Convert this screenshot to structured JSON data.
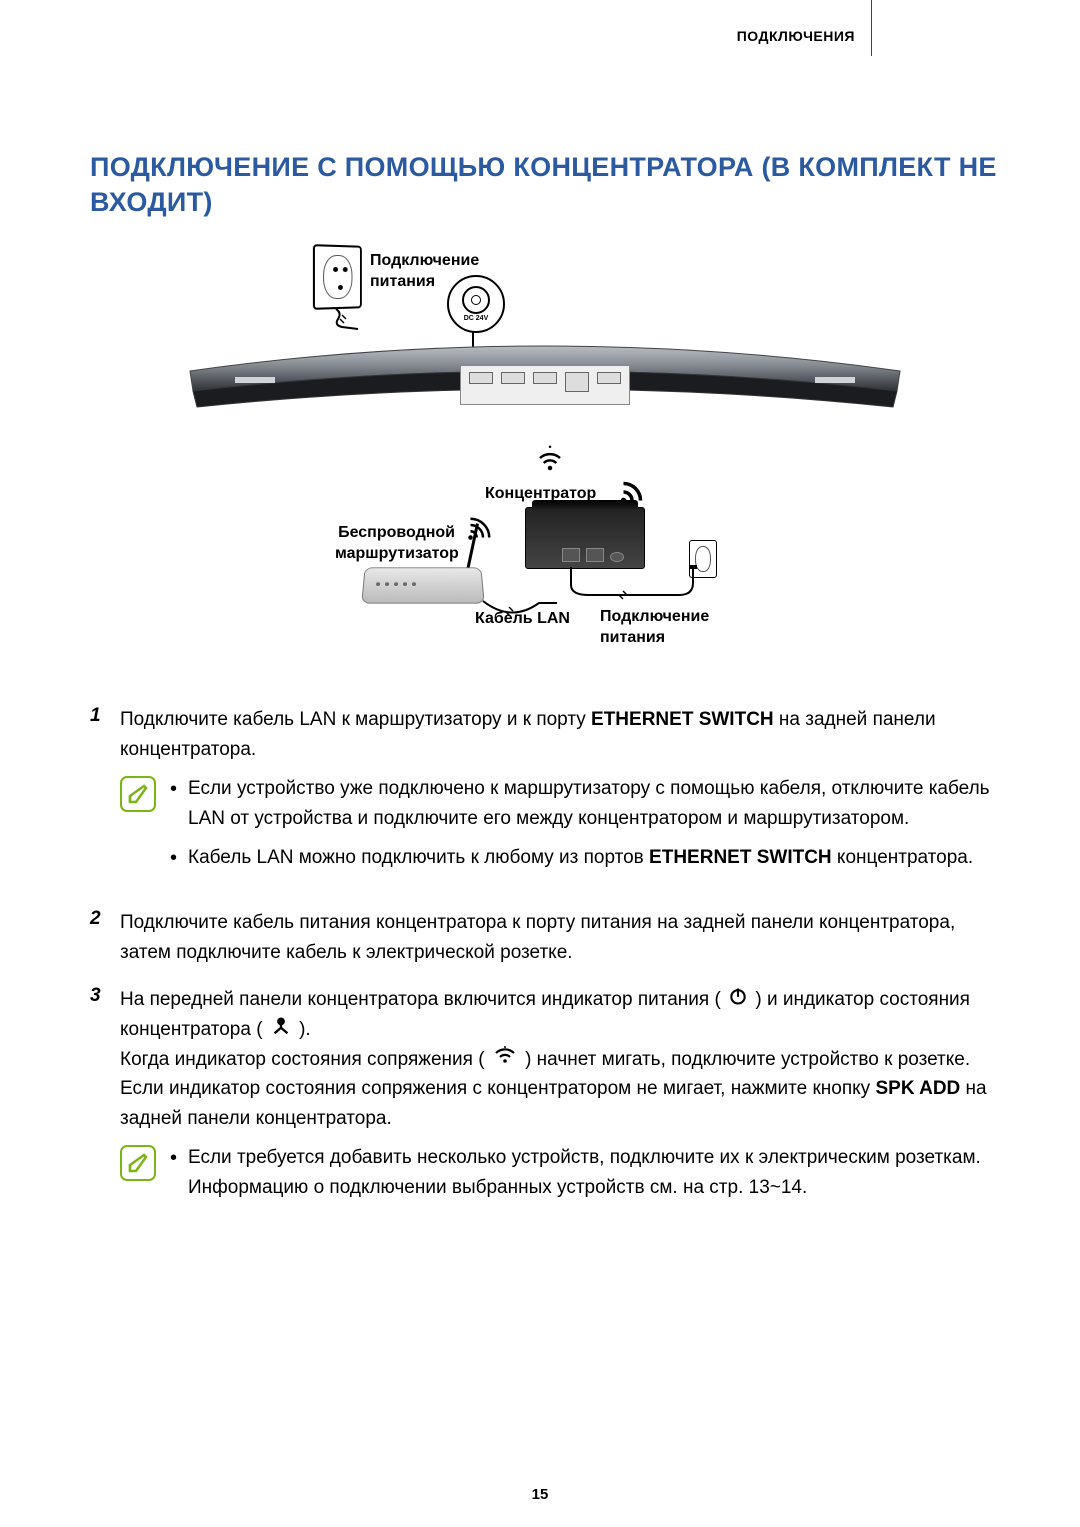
{
  "header": {
    "section": "ПОДКЛЮЧЕНИЯ"
  },
  "title": "ПОДКЛЮЧЕНИЕ С ПОМОЩЬЮ КОНЦЕНТРАТОРА (В КОМПЛЕКТ НЕ ВХОДИТ)",
  "diagram": {
    "power_label": "Подключение питания",
    "dc_label": "DC 24V",
    "hub_label": "Концентратор",
    "router_label": "Беспроводной маршрутизатор",
    "lan_label": "Кабель LAN",
    "power_label2": "Подключение питания",
    "colors": {
      "soundbar_top": "#9aa0a6",
      "soundbar_bot": "#3c3f44",
      "hub": "#222222",
      "router": "#cfcfcf",
      "note_border": "#7cb518",
      "title_color": "#2c5aa0"
    }
  },
  "steps": [
    {
      "num": "1",
      "text_pre": "Подключите кабель LAN к маршрутизатору и к порту ",
      "bold1": "ETHERNET SWITCH",
      "text_post": " на задней панели концентратора.",
      "notes": [
        "Если устройство уже подключено к маршрутизатору с помощью кабеля, отключите кабель LAN от устройства и подключите его между концентратором и маршрутизатором.",
        "Кабель LAN можно подключить к любому из портов <b>ETHERNET SWITCH</b> концентратора."
      ]
    },
    {
      "num": "2",
      "text": "Подключите кабель питания концентратора к порту питания на задней панели концентратора, затем подключите кабель к электрической розетке."
    },
    {
      "num": "3",
      "line1_pre": "На передней панели концентратора включится индикатор питания ( ",
      "line1_mid": " ) и индикатор состояния концентратора ( ",
      "line1_end": " ).",
      "line2_pre": "Когда индикатор состояния сопряжения ( ",
      "line2_end": " ) начнет мигать, подключите устройство к розетке.",
      "line3_pre": "Если индикатор состояния сопряжения с концентратором не мигает, нажмите кнопку ",
      "line3_bold": "SPK ADD",
      "line3_end": " на задней панели концентратора.",
      "notes": [
        "Если требуется добавить несколько устройств, подключите их к электрическим розеткам. Информацию о подключении выбранных устройств см. на стр. 13~14."
      ]
    }
  ],
  "page_number": "15"
}
